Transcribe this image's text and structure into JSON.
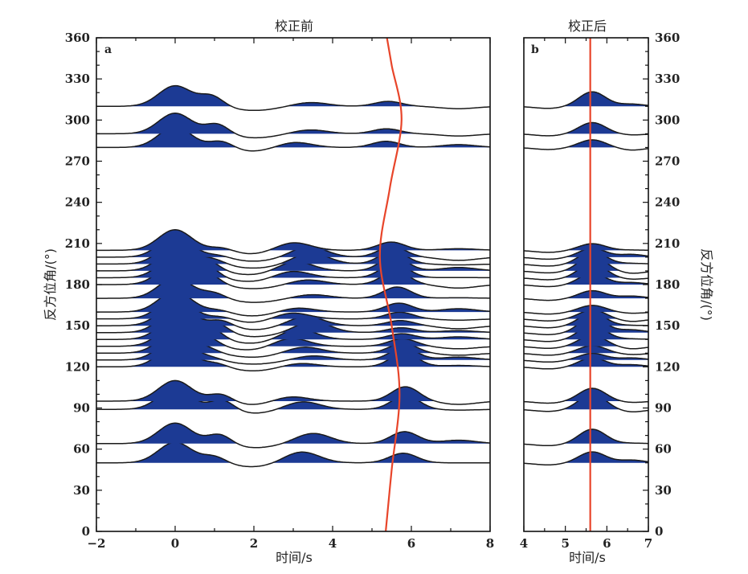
{
  "chart_data": [
    {
      "type": "line",
      "panel_label": "a",
      "title": "校正前",
      "xlabel": "时间/s",
      "ylabel": "反方位角/(°)",
      "xlim": [
        -2,
        8
      ],
      "ylim": [
        0,
        360
      ],
      "xticks": [
        -2,
        0,
        2,
        4,
        6,
        8
      ],
      "xtick_labels": [
        "−2",
        "0",
        "2",
        "4",
        "6",
        "8"
      ],
      "yticks": [
        0,
        30,
        60,
        90,
        120,
        150,
        180,
        210,
        240,
        270,
        300,
        330,
        360
      ],
      "grid": false,
      "fill_color": "#1c3a94",
      "trace_color": "#1a1a1a",
      "trace_offsets_deg": [
        50,
        64,
        89,
        95,
        120,
        125,
        130,
        135,
        140,
        145,
        150,
        155,
        160,
        170,
        180,
        185,
        190,
        195,
        200,
        205,
        280,
        290,
        310
      ],
      "red_curve": {
        "name": "reference arrival",
        "color": "#e8452a",
        "x": [
          5.35,
          5.5,
          5.7,
          5.5,
          5.2,
          5.45,
          5.75,
          5.5,
          5.38
        ],
        "y": [
          0,
          45,
          100,
          150,
          200,
          250,
          300,
          340,
          360
        ]
      }
    },
    {
      "type": "line",
      "panel_label": "b",
      "title": "校正后",
      "xlabel": "时间/s",
      "ylabel": "反方位角/(°)",
      "xlim": [
        4,
        7
      ],
      "ylim": [
        0,
        360
      ],
      "xticks": [
        4,
        5,
        6,
        7
      ],
      "xtick_labels": [
        "4",
        "5",
        "6",
        "7"
      ],
      "yticks": [
        0,
        30,
        60,
        90,
        120,
        150,
        180,
        210,
        240,
        270,
        300,
        330,
        360
      ],
      "grid": false,
      "fill_color": "#1c3a94",
      "trace_color": "#1a1a1a",
      "trace_offsets_deg": [
        50,
        64,
        89,
        95,
        120,
        125,
        130,
        135,
        140,
        145,
        150,
        155,
        160,
        170,
        180,
        185,
        190,
        195,
        200,
        205,
        280,
        290,
        310
      ],
      "red_line": {
        "name": "reference arrival",
        "color": "#e8452a",
        "x": 5.6
      }
    }
  ]
}
